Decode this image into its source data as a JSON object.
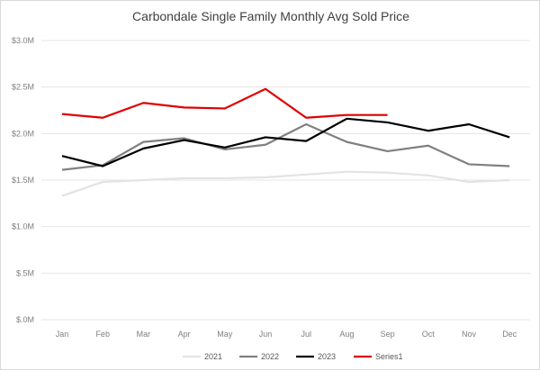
{
  "chart_data": {
    "type": "line",
    "title": "Carbondale Single Family Monthly Avg Sold Price",
    "categories": [
      "Jan",
      "Feb",
      "Mar",
      "Apr",
      "May",
      "Jun",
      "Jul",
      "Aug",
      "Sep",
      "Oct",
      "Nov",
      "Dec"
    ],
    "ylim": [
      0,
      3.0
    ],
    "yticks": [
      0,
      0.5,
      1.0,
      1.5,
      2.0,
      2.5,
      3.0
    ],
    "ytick_labels": [
      "$.0M",
      "$.5M",
      "$1.0M",
      "$1.5M",
      "$2.0M",
      "$2.5M",
      "$3.0M"
    ],
    "grid": true,
    "legend": "bottom",
    "series": [
      {
        "name": "2021",
        "color": "#e3e3e3",
        "values": [
          1.33,
          1.48,
          1.5,
          1.52,
          1.52,
          1.53,
          1.56,
          1.59,
          1.58,
          1.55,
          1.48,
          1.5
        ]
      },
      {
        "name": "2022",
        "color": "#808080",
        "values": [
          1.61,
          1.66,
          1.91,
          1.95,
          1.83,
          1.88,
          2.1,
          1.91,
          1.81,
          1.87,
          1.67,
          1.65
        ]
      },
      {
        "name": "2023",
        "color": "#000000",
        "values": [
          1.76,
          1.65,
          1.84,
          1.93,
          1.85,
          1.96,
          1.92,
          2.16,
          2.12,
          2.03,
          2.1,
          1.96
        ]
      },
      {
        "name": "Series1",
        "color": "#e00000",
        "values": [
          2.21,
          2.17,
          2.33,
          2.28,
          2.27,
          2.48,
          2.17,
          2.2,
          2.2,
          null,
          null,
          null
        ]
      }
    ]
  }
}
